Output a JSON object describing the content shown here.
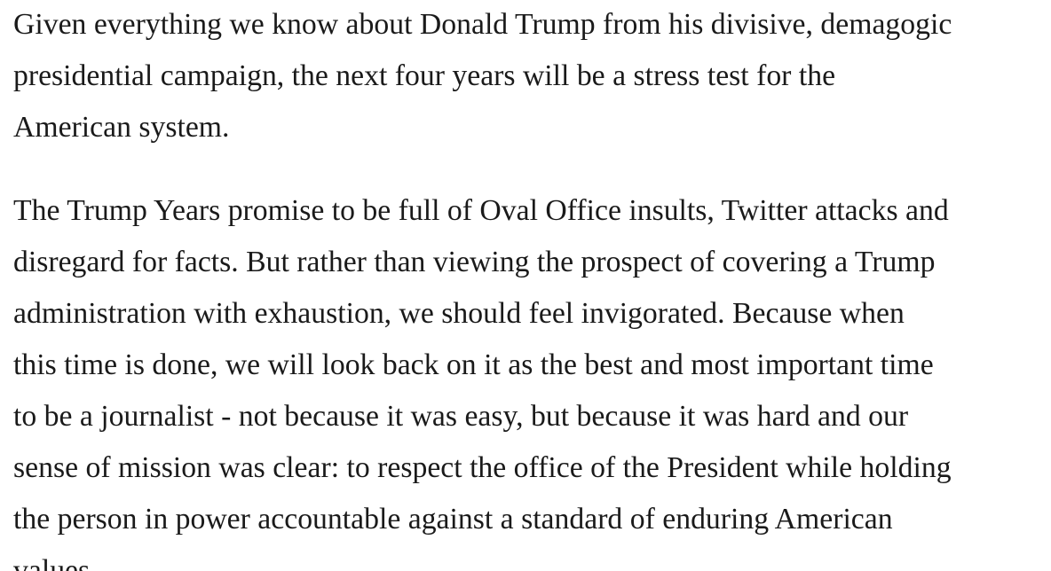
{
  "paragraphs": [
    {
      "lines": [
        "Given everything we know about Donald Trump from his divisive, demagogic",
        "presidential campaign, the next four years will be a stress test for the",
        "American system."
      ]
    },
    {
      "lines": [
        "The Trump Years promise to be full of Oval Office insults, Twitter attacks and",
        "disregard for facts. But rather than viewing the prospect of covering a Trump",
        "administration with exhaustion, we should feel invigorated. Because when",
        "this time is done, we will look back on it as the best and most important time",
        "to be a journalist - not because it was easy, but because it was hard and our",
        "sense of mission was clear: to respect the office of the President while holding",
        "the person in power accountable against a standard of enduring American",
        "values."
      ]
    }
  ]
}
